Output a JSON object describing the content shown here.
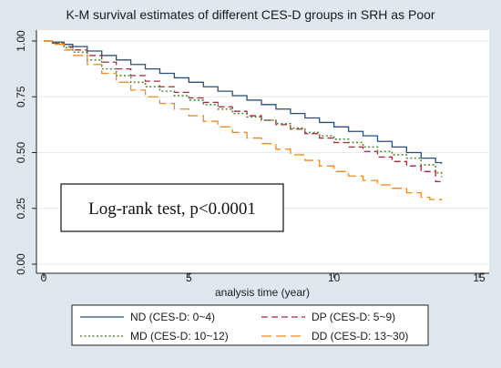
{
  "chart_data": {
    "type": "line",
    "title": "K-M survival estimates of different CES-D groups in SRH as Poor",
    "xlabel": "analysis time (year)",
    "ylabel": "",
    "xlim": [
      0,
      15
    ],
    "ylim": [
      0,
      1
    ],
    "x_ticks": [
      "0",
      "5",
      "10",
      "15"
    ],
    "y_ticks": [
      "0.00",
      "0.25",
      "0.50",
      "0.75",
      "1.00"
    ],
    "grid": true,
    "legend_position": "bottom",
    "annotation": "Log-rank test, p<0.0001",
    "colors": {
      "background": "#dfe8ee",
      "plot_area": "#ffffff",
      "grid": "#e6ebee",
      "nd": "#2b4f7a",
      "dp": "#a8283d",
      "md": "#5a8a3a",
      "dd": "#f08a1c"
    },
    "series": [
      {
        "name": "ND (CES-D: 0~4)",
        "key": "nd",
        "dash": "solid",
        "x": [
          0,
          0.3,
          0.7,
          1,
          1.5,
          2,
          2.5,
          3,
          3.5,
          4,
          4.5,
          5,
          5.5,
          6,
          6.5,
          7,
          7.5,
          8,
          8.5,
          9,
          9.5,
          10,
          10.5,
          11,
          11.5,
          12,
          12.5,
          13,
          13.5,
          13.7
        ],
        "y": [
          1,
          0.995,
          0.985,
          0.975,
          0.955,
          0.935,
          0.915,
          0.895,
          0.875,
          0.855,
          0.835,
          0.815,
          0.795,
          0.775,
          0.755,
          0.735,
          0.715,
          0.695,
          0.675,
          0.655,
          0.635,
          0.615,
          0.595,
          0.575,
          0.55,
          0.525,
          0.5,
          0.475,
          0.455,
          0.45
        ]
      },
      {
        "name": "DP (CES-D: 5~9)",
        "key": "dp",
        "dash": "long-dash",
        "x": [
          0,
          0.3,
          0.7,
          1,
          1.5,
          2,
          2.5,
          3,
          3.5,
          4,
          4.5,
          5,
          5.5,
          6,
          6.5,
          7,
          7.5,
          8,
          8.5,
          9,
          9.5,
          10,
          10.5,
          11,
          11.5,
          12,
          12.5,
          13,
          13.5,
          13.7
        ],
        "y": [
          1,
          0.99,
          0.975,
          0.96,
          0.935,
          0.905,
          0.875,
          0.845,
          0.82,
          0.795,
          0.77,
          0.745,
          0.725,
          0.705,
          0.685,
          0.665,
          0.645,
          0.625,
          0.605,
          0.585,
          0.565,
          0.545,
          0.525,
          0.505,
          0.48,
          0.46,
          0.44,
          0.415,
          0.37,
          0.36
        ]
      },
      {
        "name": "MD (CES-D: 10~12)",
        "key": "md",
        "dash": "dotted",
        "x": [
          0,
          0.3,
          0.7,
          1,
          1.5,
          2,
          2.5,
          3,
          3.5,
          4,
          4.5,
          5,
          5.5,
          6,
          6.5,
          7,
          7.5,
          8,
          8.5,
          9,
          9.5,
          10,
          10.5,
          11,
          11.5,
          12,
          12.5,
          13,
          13.5,
          13.7
        ],
        "y": [
          1,
          0.99,
          0.97,
          0.95,
          0.915,
          0.875,
          0.845,
          0.815,
          0.795,
          0.775,
          0.755,
          0.735,
          0.715,
          0.695,
          0.675,
          0.66,
          0.645,
          0.63,
          0.61,
          0.59,
          0.575,
          0.56,
          0.545,
          0.525,
          0.505,
          0.49,
          0.475,
          0.445,
          0.41,
          0.39
        ]
      },
      {
        "name": "DD (CES-D: 13~30)",
        "key": "dd",
        "dash": "dashed",
        "x": [
          0,
          0.3,
          0.7,
          1,
          1.5,
          2,
          2.5,
          3,
          3.5,
          4,
          4.5,
          5,
          5.5,
          6,
          6.5,
          7,
          7.5,
          8,
          8.5,
          9,
          9.5,
          10,
          10.5,
          11,
          11.5,
          12,
          12.5,
          13,
          13.3,
          13.7
        ],
        "y": [
          1,
          0.985,
          0.96,
          0.935,
          0.895,
          0.855,
          0.815,
          0.78,
          0.75,
          0.72,
          0.695,
          0.665,
          0.64,
          0.615,
          0.59,
          0.565,
          0.54,
          0.515,
          0.49,
          0.465,
          0.44,
          0.415,
          0.395,
          0.375,
          0.355,
          0.34,
          0.32,
          0.3,
          0.29,
          0.285
        ]
      }
    ]
  }
}
